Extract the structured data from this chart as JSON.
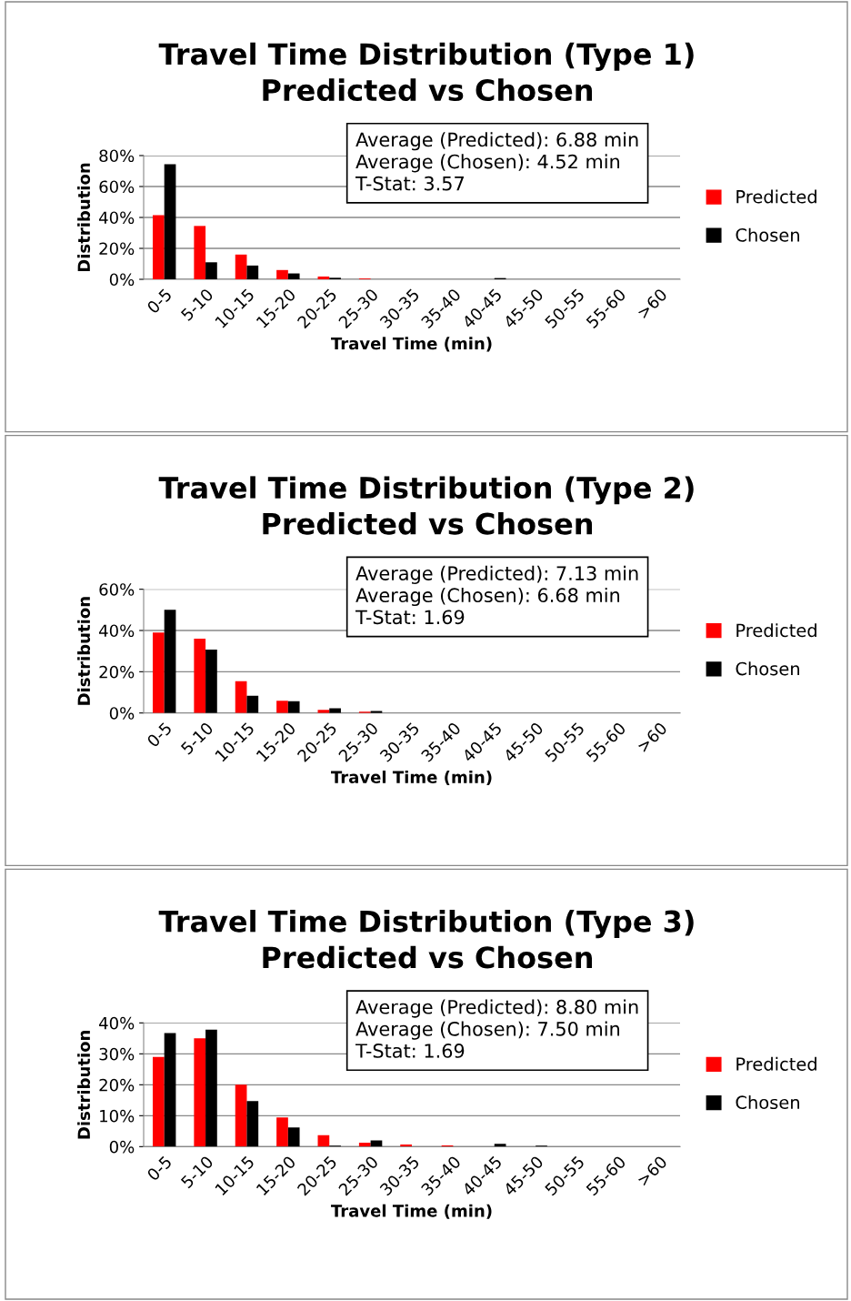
{
  "chart_data": [
    {
      "type": "bar",
      "title": "Travel Time Distribution (Type 1)\nPredicted vs Chosen",
      "xlabel": "Travel Time (min)",
      "ylabel": "Distribution",
      "categories": [
        "0-5",
        "5-10",
        "10-15",
        "15-20",
        "20-25",
        "25-30",
        "30-35",
        "35-40",
        "40-45",
        "45-50",
        "50-55",
        "55-60",
        ">60"
      ],
      "series": [
        {
          "name": "Predicted",
          "color": "#ff0000",
          "values": [
            41.4,
            34.5,
            16,
            6,
            1.8,
            0.5,
            0,
            0,
            0,
            0,
            0,
            0,
            0
          ]
        },
        {
          "name": "Chosen",
          "color": "#000000",
          "values": [
            74.4,
            11,
            8.9,
            3.8,
            1,
            0,
            0,
            0,
            0.8,
            0,
            0,
            0,
            0
          ]
        }
      ],
      "ylim": [
        0,
        80
      ],
      "yticks": [
        {
          "value": 0,
          "label": "0%"
        },
        {
          "value": 20,
          "label": "20%"
        },
        {
          "value": 40,
          "label": "40%"
        },
        {
          "value": 60,
          "label": "60%"
        },
        {
          "value": 80,
          "label": "80%"
        }
      ],
      "grid": "y",
      "legend": "right",
      "annotations": [
        "Average (Predicted): 6.88 min",
        "Average (Chosen): 4.52 min",
        "T-Stat: 3.57"
      ]
    },
    {
      "type": "bar",
      "title": "Travel Time Distribution (Type 2)\nPredicted vs Chosen",
      "xlabel": "Travel Time (min)",
      "ylabel": "Distribution",
      "categories": [
        "0-5",
        "5-10",
        "10-15",
        "15-20",
        "20-25",
        "25-30",
        "30-35",
        "35-40",
        "40-45",
        "45-50",
        "50-55",
        "55-60",
        ">60"
      ],
      "series": [
        {
          "name": "Predicted",
          "color": "#ff0000",
          "values": [
            39,
            36,
            15.4,
            5.9,
            1.5,
            0.6,
            0,
            0,
            0,
            0,
            0,
            0,
            0
          ]
        },
        {
          "name": "Chosen",
          "color": "#000000",
          "values": [
            50,
            30.7,
            8.3,
            5.7,
            2.3,
            1,
            0,
            0,
            0,
            0,
            0,
            0,
            0
          ]
        }
      ],
      "ylim": [
        0,
        60
      ],
      "yticks": [
        {
          "value": 0,
          "label": "0%"
        },
        {
          "value": 20,
          "label": "20%"
        },
        {
          "value": 40,
          "label": "40%"
        },
        {
          "value": 60,
          "label": "60%"
        }
      ],
      "grid": "y",
      "legend": "right",
      "annotations": [
        "Average (Predicted): 7.13 min",
        "Average (Chosen): 6.68 min",
        "T-Stat: 1.69"
      ]
    },
    {
      "type": "bar",
      "title": "Travel Time Distribution (Type 3)\nPredicted vs Chosen",
      "xlabel": "Travel Time (min)",
      "ylabel": "Distribution",
      "categories": [
        "0-5",
        "5-10",
        "10-15",
        "15-20",
        "20-25",
        "25-30",
        "30-35",
        "35-40",
        "40-45",
        "45-50",
        "50-55",
        "55-60",
        ">60"
      ],
      "series": [
        {
          "name": "Predicted",
          "color": "#ff0000",
          "values": [
            29,
            35,
            20,
            9.4,
            3.7,
            1.3,
            0.7,
            0.4,
            0,
            0,
            0,
            0,
            0
          ]
        },
        {
          "name": "Chosen",
          "color": "#000000",
          "values": [
            36.7,
            37.8,
            14.7,
            6.2,
            0.3,
            2,
            0,
            0,
            0.9,
            0.3,
            0,
            0,
            0
          ]
        }
      ],
      "ylim": [
        0,
        40
      ],
      "yticks": [
        {
          "value": 0,
          "label": "0%"
        },
        {
          "value": 10,
          "label": "10%"
        },
        {
          "value": 20,
          "label": "20%"
        },
        {
          "value": 30,
          "label": "30%"
        },
        {
          "value": 40,
          "label": "40%"
        }
      ],
      "grid": "y",
      "legend": "right",
      "annotations": [
        "Average (Predicted): 8.80 min",
        "Average (Chosen): 7.50 min",
        "T-Stat: 1.69"
      ]
    }
  ]
}
